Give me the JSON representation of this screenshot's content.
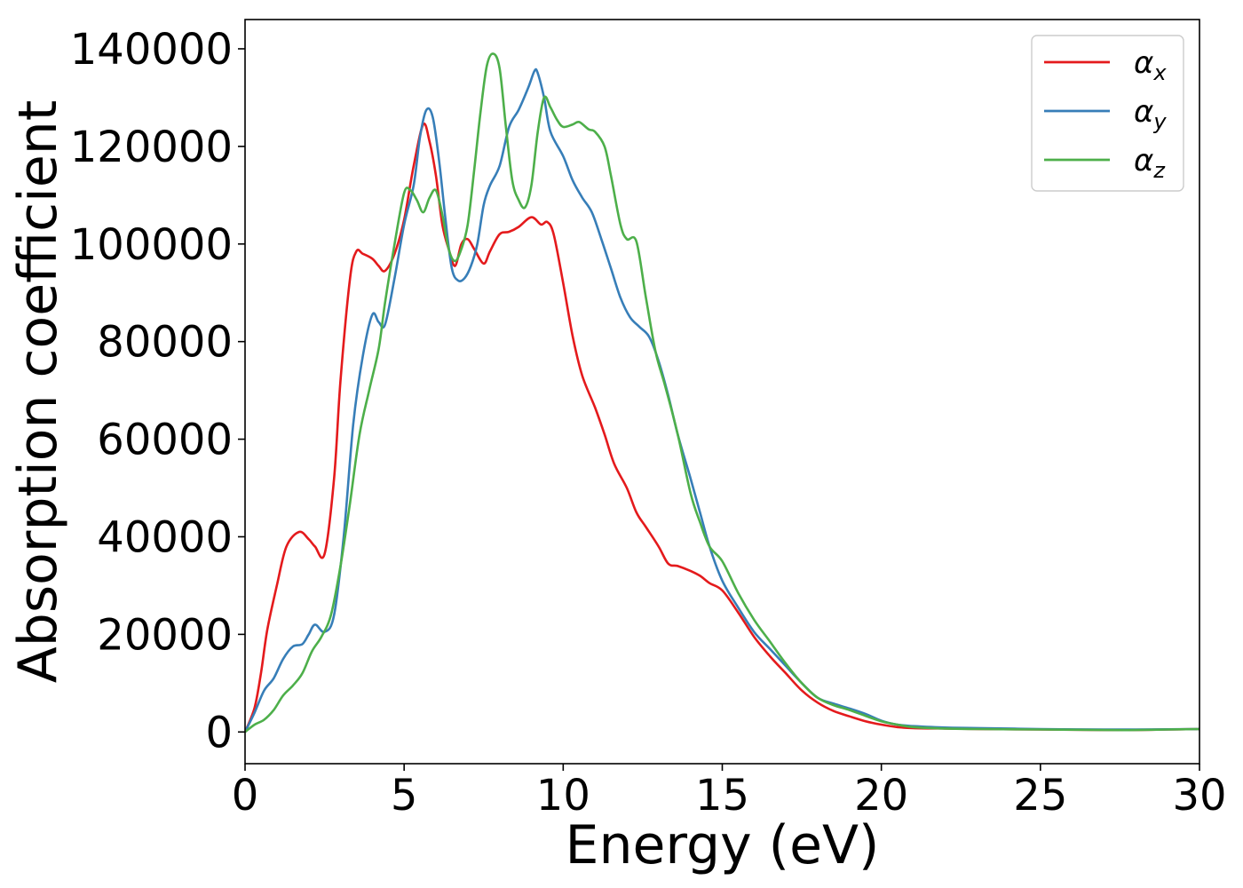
{
  "chart_data": {
    "type": "line",
    "title": "",
    "xlabel": "Energy (eV)",
    "ylabel": "Absorption coefficient",
    "xlim": [
      0,
      30
    ],
    "ylim": [
      -6500,
      146000
    ],
    "xticks": [
      0,
      5,
      10,
      15,
      20,
      25,
      30
    ],
    "yticks": [
      0,
      20000,
      40000,
      60000,
      80000,
      100000,
      120000,
      140000
    ],
    "grid": false,
    "legend_position": "top-right",
    "series": [
      {
        "name": "αx",
        "legend": {
          "symbol": "α",
          "sub": "x"
        },
        "color": "#e41a1c",
        "x": [
          0,
          0.3,
          0.5,
          0.7,
          1.0,
          1.3,
          1.7,
          2.0,
          2.2,
          2.5,
          2.8,
          3.0,
          3.3,
          3.5,
          3.7,
          4.0,
          4.2,
          4.4,
          4.7,
          5.0,
          5.3,
          5.6,
          5.8,
          6.0,
          6.2,
          6.4,
          6.6,
          6.8,
          7.0,
          7.2,
          7.5,
          7.7,
          8.0,
          8.3,
          8.6,
          9.0,
          9.3,
          9.5,
          9.7,
          10.0,
          10.3,
          10.6,
          11.0,
          11.3,
          11.6,
          12.0,
          12.3,
          12.6,
          13.0,
          13.3,
          13.6,
          14.0,
          14.3,
          14.6,
          15.0,
          15.5,
          16.0,
          16.5,
          17.0,
          17.5,
          18.0,
          18.5,
          19.0,
          19.5,
          20.0,
          20.5,
          21.0,
          22.0,
          23.0,
          25.0,
          27.0,
          28.0,
          29.0,
          30.0
        ],
        "y": [
          0,
          5000,
          12000,
          21000,
          30000,
          38000,
          41000,
          39500,
          38000,
          36500,
          52000,
          72000,
          93000,
          98500,
          98000,
          97000,
          95500,
          94500,
          98000,
          105000,
          116000,
          124500,
          121000,
          114000,
          104000,
          99000,
          95500,
          100000,
          101000,
          99000,
          96000,
          98500,
          102000,
          102500,
          103500,
          105500,
          104000,
          104500,
          102000,
          92000,
          81000,
          73000,
          66500,
          61000,
          55000,
          50000,
          45000,
          42000,
          38000,
          34500,
          34000,
          33000,
          32000,
          30500,
          29000,
          24500,
          19500,
          15500,
          12000,
          8500,
          6000,
          4300,
          3200,
          2200,
          1500,
          1000,
          800,
          700,
          600,
          500,
          400,
          400,
          500,
          600
        ]
      },
      {
        "name": "αy",
        "legend": {
          "symbol": "α",
          "sub": "y"
        },
        "color": "#377eb8",
        "x": [
          0,
          0.3,
          0.6,
          0.9,
          1.2,
          1.5,
          1.8,
          2.0,
          2.2,
          2.5,
          2.8,
          3.1,
          3.4,
          3.7,
          4.0,
          4.2,
          4.4,
          4.7,
          5.0,
          5.3,
          5.5,
          5.7,
          5.9,
          6.1,
          6.3,
          6.5,
          6.7,
          6.9,
          7.1,
          7.3,
          7.5,
          7.7,
          8.0,
          8.3,
          8.6,
          8.9,
          9.1,
          9.2,
          9.4,
          9.6,
          10.0,
          10.3,
          10.6,
          10.9,
          11.2,
          11.5,
          11.8,
          12.1,
          12.4,
          12.7,
          13.0,
          13.3,
          13.6,
          14.0,
          14.3,
          14.6,
          15.0,
          15.5,
          16.0,
          16.5,
          17.0,
          17.5,
          18.0,
          18.5,
          19.0,
          19.5,
          20.0,
          20.5,
          21.0,
          22.0,
          23.0,
          25.0,
          27.0,
          28.0,
          29.0,
          30.0
        ],
        "y": [
          0,
          4000,
          8500,
          11000,
          15000,
          17500,
          18000,
          20000,
          22000,
          20500,
          24000,
          40000,
          63000,
          77000,
          85500,
          84000,
          83500,
          93000,
          104000,
          112000,
          122000,
          127500,
          126000,
          117000,
          105000,
          95000,
          92500,
          93000,
          95500,
          100000,
          108000,
          112000,
          116000,
          124000,
          127500,
          132000,
          135500,
          135000,
          130000,
          123000,
          118000,
          113000,
          109500,
          106500,
          101000,
          95000,
          89000,
          85000,
          83000,
          81000,
          76000,
          69000,
          61000,
          52000,
          45000,
          38000,
          31000,
          25500,
          20500,
          17000,
          13500,
          10000,
          7000,
          5800,
          4800,
          3700,
          2300,
          1500,
          1200,
          900,
          800,
          600,
          500,
          500,
          550,
          600
        ]
      },
      {
        "name": "αz",
        "legend": {
          "symbol": "α",
          "sub": "z"
        },
        "color": "#4daf4a",
        "x": [
          0,
          0.3,
          0.6,
          0.9,
          1.2,
          1.5,
          1.8,
          2.1,
          2.4,
          2.7,
          3.0,
          3.3,
          3.6,
          3.9,
          4.2,
          4.4,
          4.7,
          5.0,
          5.2,
          5.4,
          5.6,
          5.8,
          6.0,
          6.2,
          6.4,
          6.6,
          6.8,
          7.0,
          7.2,
          7.4,
          7.6,
          7.8,
          8.0,
          8.2,
          8.4,
          8.6,
          8.8,
          9.0,
          9.2,
          9.4,
          9.6,
          9.8,
          10.0,
          10.3,
          10.5,
          10.8,
          11.0,
          11.3,
          11.5,
          11.8,
          12.0,
          12.3,
          12.6,
          12.9,
          13.2,
          13.6,
          14.0,
          14.3,
          14.6,
          15.0,
          15.5,
          16.0,
          16.5,
          17.0,
          17.5,
          18.0,
          18.5,
          19.0,
          19.5,
          20.0,
          20.5,
          21.0,
          22.0,
          23.0,
          25.0,
          27.0,
          28.0,
          29.0,
          30.0
        ],
        "y": [
          0,
          1500,
          2500,
          4500,
          7500,
          9500,
          12000,
          16500,
          19500,
          24000,
          34000,
          47000,
          61000,
          70000,
          78500,
          88000,
          100000,
          110500,
          111000,
          109000,
          106500,
          109500,
          111000,
          106000,
          99000,
          96500,
          99000,
          104000,
          115000,
          127000,
          136500,
          139000,
          136000,
          124000,
          113000,
          109000,
          107500,
          112000,
          123000,
          130000,
          128000,
          125500,
          124000,
          124500,
          125000,
          123500,
          123000,
          120000,
          114000,
          104000,
          101000,
          100500,
          89000,
          78000,
          71000,
          61000,
          49000,
          43000,
          38000,
          35000,
          28500,
          23000,
          18500,
          14000,
          10000,
          7000,
          5500,
          4500,
          3300,
          2200,
          1500,
          1000,
          700,
          600,
          500,
          400,
          400,
          500,
          600
        ]
      }
    ]
  }
}
